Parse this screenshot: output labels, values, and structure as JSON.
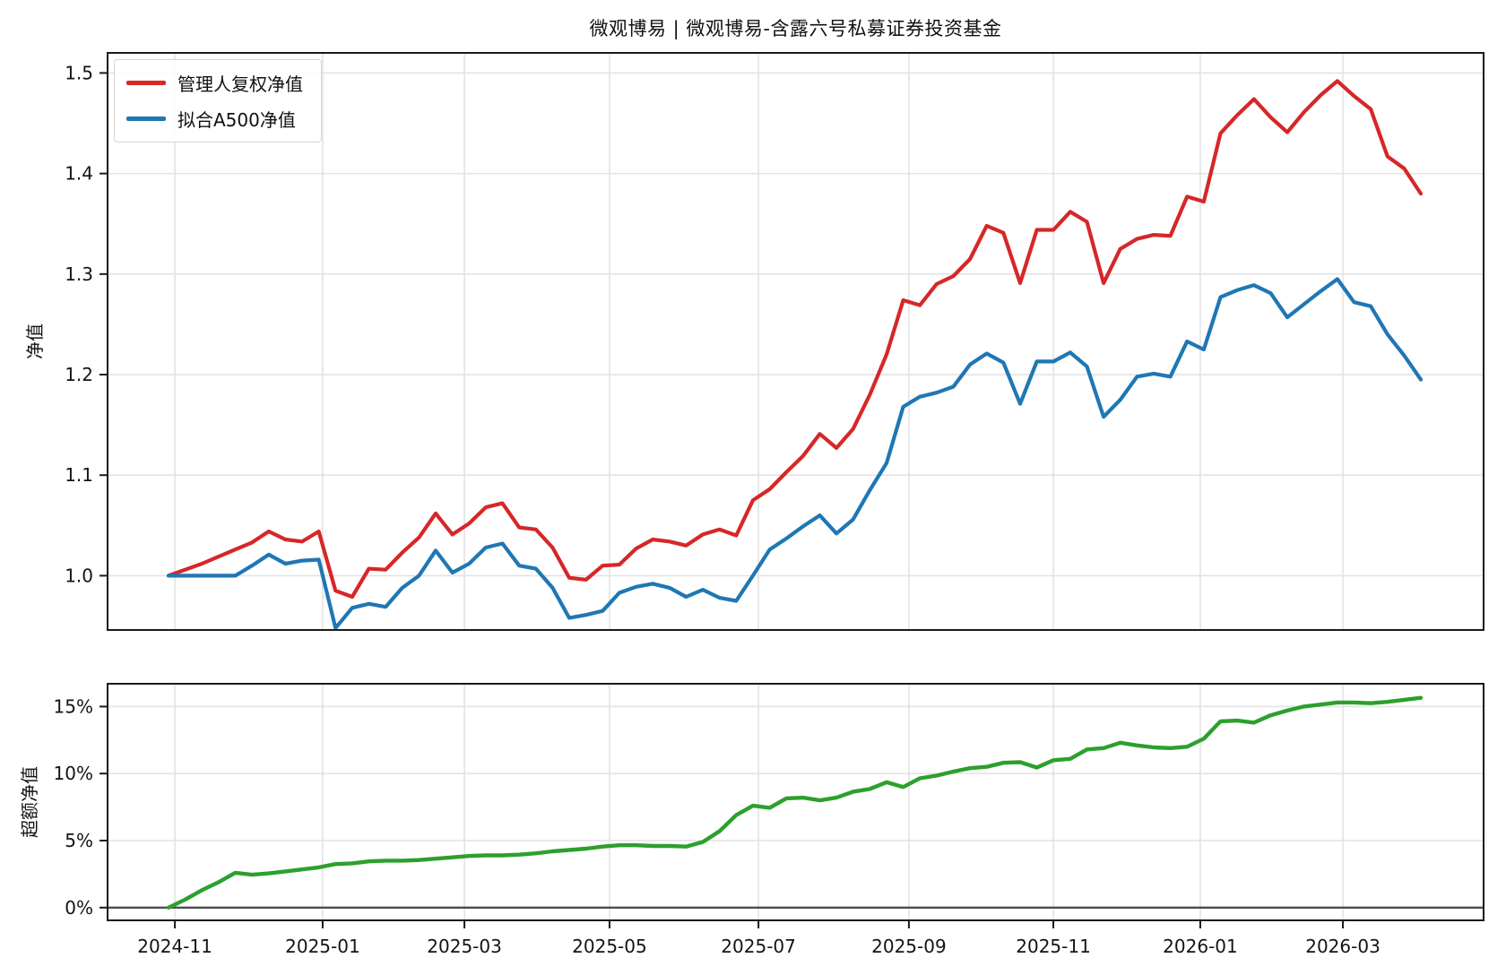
{
  "title": "微观博易 | 微观博易-含露六号私募证券投资基金",
  "chart_data": [
    {
      "type": "line",
      "panel": "top",
      "ylabel": "净值",
      "ytick_labels": [
        "1.0",
        "1.1",
        "1.2",
        "1.3",
        "1.4",
        "1.5"
      ],
      "ytick_values": [
        1.0,
        1.1,
        1.2,
        1.3,
        1.4,
        1.5
      ],
      "ylim": [
        0.946,
        1.52
      ],
      "grid": true,
      "legend_position": "upper left",
      "x_tick_labels": [
        "2024-11",
        "2025-01",
        "2025-03",
        "2025-05",
        "2025-07",
        "2025-09",
        "2025-11",
        "2026-01",
        "2026-03"
      ],
      "x_tick_weeks": [
        0.38,
        9.23,
        17.72,
        26.41,
        35.33,
        44.34,
        52.99,
        61.79,
        70.33
      ],
      "x_unit": "weekly points from 2024-10-31 to 2026-04",
      "series": [
        {
          "name": "管理人复权净值",
          "color": "#d62728",
          "values": [
            1.0,
            1.006,
            1.012,
            1.019,
            1.026,
            1.033,
            1.044,
            1.036,
            1.034,
            1.044,
            0.985,
            0.979,
            1.007,
            1.006,
            1.023,
            1.038,
            1.062,
            1.041,
            1.052,
            1.068,
            1.072,
            1.048,
            1.046,
            1.028,
            0.998,
            0.996,
            1.01,
            1.011,
            1.027,
            1.036,
            1.034,
            1.03,
            1.041,
            1.046,
            1.04,
            1.075,
            1.086,
            1.103,
            1.119,
            1.141,
            1.127,
            1.146,
            1.18,
            1.22,
            1.274,
            1.269,
            1.29,
            1.298,
            1.315,
            1.348,
            1.341,
            1.291,
            1.344,
            1.344,
            1.362,
            1.352,
            1.291,
            1.325,
            1.335,
            1.339,
            1.338,
            1.377,
            1.372,
            1.44,
            1.458,
            1.474,
            1.456,
            1.441,
            1.461,
            1.478,
            1.492,
            1.477,
            1.464,
            1.417,
            1.405,
            1.38
          ]
        },
        {
          "name": "拟合A500净值",
          "color": "#1f77b4",
          "values": [
            1.0,
            1.0,
            1.0,
            1.0,
            1.0,
            1.01,
            1.021,
            1.012,
            1.015,
            1.016,
            0.948,
            0.968,
            0.972,
            0.969,
            0.988,
            1.0,
            1.025,
            1.003,
            1.012,
            1.028,
            1.032,
            1.01,
            1.007,
            0.988,
            0.958,
            0.961,
            0.965,
            0.983,
            0.989,
            0.992,
            0.988,
            0.979,
            0.986,
            0.978,
            0.975,
            1.0,
            1.026,
            1.037,
            1.049,
            1.06,
            1.042,
            1.056,
            1.085,
            1.112,
            1.168,
            1.178,
            1.182,
            1.188,
            1.21,
            1.221,
            1.212,
            1.171,
            1.213,
            1.213,
            1.222,
            1.208,
            1.158,
            1.175,
            1.198,
            1.201,
            1.198,
            1.233,
            1.225,
            1.277,
            1.284,
            1.289,
            1.281,
            1.257,
            1.27,
            1.283,
            1.295,
            1.272,
            1.268,
            1.24,
            1.219,
            1.195
          ]
        }
      ]
    },
    {
      "type": "line",
      "panel": "bottom",
      "ylabel": "超额净值",
      "ytick_labels": [
        "0%",
        "5%",
        "10%",
        "15%"
      ],
      "ytick_values": [
        0,
        5,
        10,
        15
      ],
      "ylim": [
        -0.95,
        16.7
      ],
      "grid": true,
      "zero_line": true,
      "series": [
        {
          "name": "超额净值",
          "color": "#2ca02c",
          "values_pct": [
            0.0,
            0.6,
            1.3,
            1.9,
            2.6,
            2.45,
            2.55,
            2.7,
            2.85,
            3.0,
            3.25,
            3.3,
            3.45,
            3.5,
            3.5,
            3.55,
            3.65,
            3.75,
            3.85,
            3.9,
            3.9,
            3.95,
            4.05,
            4.2,
            4.3,
            4.4,
            4.55,
            4.65,
            4.65,
            4.6,
            4.6,
            4.55,
            4.9,
            5.7,
            6.9,
            7.6,
            7.45,
            8.15,
            8.2,
            8.0,
            8.2,
            8.65,
            8.85,
            9.35,
            9.0,
            9.65,
            9.85,
            10.15,
            10.4,
            10.5,
            10.8,
            10.85,
            10.45,
            11.0,
            11.1,
            11.8,
            11.9,
            12.3,
            12.1,
            11.95,
            11.9,
            12.0,
            12.6,
            13.9,
            13.95,
            13.8,
            14.35,
            14.7,
            15.0,
            15.15,
            15.3,
            15.3,
            15.25,
            15.35,
            15.5,
            15.65
          ]
        }
      ]
    }
  ],
  "style": {
    "grid_color": "#e3e3e3",
    "spine_color": "#1a1a1a",
    "zero_line_color": "#4d4d4d",
    "text_color": "#141414"
  }
}
